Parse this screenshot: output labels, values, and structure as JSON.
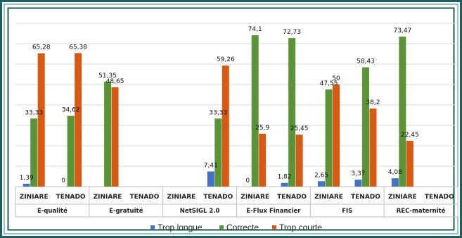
{
  "chart_data": {
    "type": "bar",
    "ylim": [
      0,
      80
    ],
    "grid": true,
    "legend_position": "bottom",
    "groups": [
      {
        "name": "E-qualité",
        "categories": [
          "ZINIARE",
          "TENADO"
        ]
      },
      {
        "name": "E-gratuité",
        "categories": [
          "ZINIARE",
          "TENADO"
        ]
      },
      {
        "name": "NetSIGL 2.0",
        "categories": [
          "ZINIARE",
          "TENADO"
        ]
      },
      {
        "name": "E-Flux Financier",
        "categories": [
          "ZINIARE",
          "TENADO"
        ]
      },
      {
        "name": "FIS",
        "categories": [
          "ZINIARE",
          "TENADO"
        ]
      },
      {
        "name": "REC-maternité",
        "categories": [
          "ZINIARE",
          "TENADO"
        ]
      }
    ],
    "series": [
      {
        "name": "Trop longue",
        "color": "#4472C4",
        "values": [
          1.39,
          0,
          null,
          null,
          null,
          7.41,
          0,
          1.82,
          2.65,
          3.37,
          4.08,
          null
        ],
        "labels": [
          "1,39",
          "0",
          "",
          "",
          "",
          "7,41",
          "0",
          "1,82",
          "2,65",
          "3,37",
          "4,08",
          ""
        ]
      },
      {
        "name": "Correcte",
        "color": "#5B9337",
        "values": [
          33.33,
          34.62,
          51.35,
          null,
          null,
          33.33,
          74.1,
          72.73,
          47.55,
          58.43,
          73.47,
          null
        ],
        "labels": [
          "33,33",
          "34,62",
          "51,35",
          "",
          "",
          "33,33",
          "74,1",
          "72,73",
          "47,55",
          "58,43",
          "73,47",
          ""
        ]
      },
      {
        "name": "Trop courte",
        "color": "#D65A14",
        "values": [
          65.28,
          65.38,
          48.65,
          null,
          null,
          59.26,
          25.9,
          25.45,
          50,
          38.2,
          22.45,
          null
        ],
        "labels": [
          "65,28",
          "65,38",
          "48,65",
          "",
          "",
          "59,26",
          "25,9",
          "25,45",
          "50",
          "38,2",
          "22,45",
          ""
        ]
      }
    ]
  },
  "colors": {
    "frame_outer": "#1F5E5E",
    "frame_inner": "#2E8B8B",
    "grid": "#D9D9D9",
    "axis": "#BFBFBF"
  }
}
